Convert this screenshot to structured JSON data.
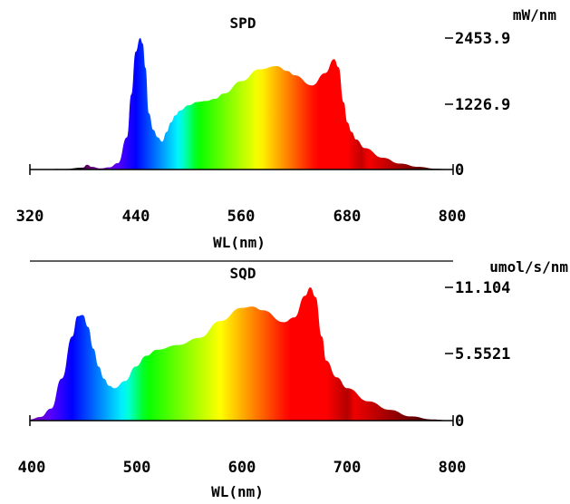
{
  "chart_data": [
    {
      "type": "area",
      "title": "SPD",
      "xlabel": "WL(nm)",
      "ylabel": "mW/nm",
      "xlim": [
        320,
        800
      ],
      "ylim": [
        0,
        2453.9
      ],
      "x_ticks": [
        "320",
        "440",
        "560",
        "680",
        "800"
      ],
      "y_ticks": [
        "0",
        "1226.9",
        "2453.9"
      ],
      "fill": "wavelength spectrum colors",
      "series": [
        {
          "x": [
            320,
            360,
            380,
            385,
            390,
            400,
            410,
            420,
            430,
            435,
            440,
            445,
            448,
            451,
            455,
            460,
            465,
            470,
            475,
            480,
            485,
            490,
            500,
            510,
            520,
            530,
            540,
            560,
            580,
            600,
            612,
            620,
            640,
            655,
            665,
            670,
            676,
            680,
            685,
            690,
            700,
            720,
            740,
            760,
            780,
            800
          ],
          "y": [
            5,
            10,
            35,
            90,
            50,
            20,
            40,
            120,
            600,
            1400,
            2200,
            2453.9,
            2350,
            1900,
            1050,
            740,
            600,
            520,
            700,
            880,
            1010,
            1100,
            1200,
            1260,
            1280,
            1320,
            1420,
            1650,
            1870,
            1930,
            1840,
            1760,
            1570,
            1800,
            2060,
            1910,
            1250,
            880,
            700,
            560,
            400,
            220,
            110,
            50,
            15,
            0
          ]
        }
      ]
    },
    {
      "type": "area",
      "title": "SQD",
      "xlabel": "WL(nm)",
      "ylabel": "umol/s/nm",
      "xlim": [
        400,
        800
      ],
      "ylim": [
        0,
        11.104
      ],
      "x_ticks": [
        "400",
        "500",
        "600",
        "700",
        "800"
      ],
      "y_ticks": [
        "0",
        "5.5521",
        "11.104"
      ],
      "fill": "wavelength spectrum colors",
      "series": [
        {
          "x": [
            400,
            410,
            420,
            430,
            440,
            445,
            450,
            455,
            460,
            465,
            470,
            475,
            480,
            490,
            500,
            510,
            520,
            540,
            560,
            580,
            600,
            610,
            620,
            640,
            650,
            660,
            665,
            670,
            676,
            680,
            690,
            700,
            720,
            740,
            760,
            780,
            800
          ],
          "y": [
            0.1,
            0.3,
            1.0,
            3.5,
            7.0,
            8.7,
            8.8,
            7.8,
            6.0,
            4.5,
            3.5,
            2.9,
            2.7,
            3.3,
            4.5,
            5.4,
            5.9,
            6.3,
            6.9,
            8.3,
            9.4,
            9.5,
            9.2,
            8.2,
            8.6,
            10.4,
            11.104,
            10.3,
            7.0,
            5.0,
            3.6,
            2.7,
            1.6,
            0.9,
            0.35,
            0.1,
            0.0
          ]
        }
      ]
    }
  ]
}
